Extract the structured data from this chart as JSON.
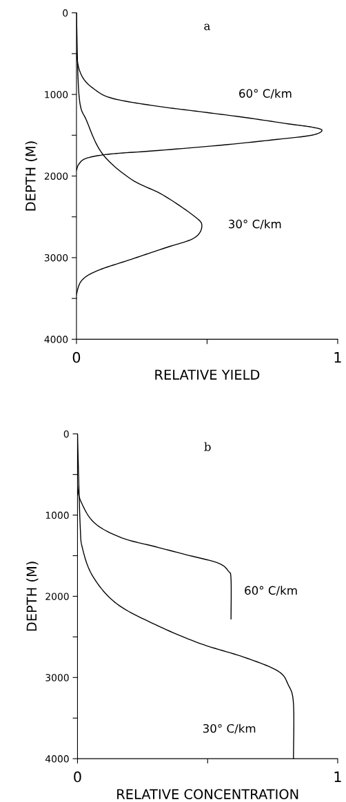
{
  "chart_data": [
    {
      "type": "line",
      "title": "a",
      "xlabel": "RELATIVE YIELD",
      "ylabel": "DEPTH (M)",
      "xlim": [
        0,
        1
      ],
      "xticks": [
        0,
        {
          "value": 0.5,
          "label": null
        },
        1
      ],
      "ylim": [
        4000,
        0
      ],
      "yticks": [
        0,
        {
          "value": 500,
          "label": null
        },
        1000,
        {
          "value": 1500,
          "label": null
        },
        2000,
        {
          "value": 2500,
          "label": null
        },
        3000,
        {
          "value": 3500,
          "label": null
        },
        4000
      ],
      "grid": false,
      "marker": "none",
      "line_style": "solid",
      "series": [
        {
          "color": "#000000",
          "x": [
            0,
            0,
            0.02,
            0.07,
            0.14,
            0.3,
            0.47,
            0.64,
            0.81,
            0.9,
            0.94,
            0.9,
            0.77,
            0.56,
            0.3,
            0.13,
            0.04,
            0.01,
            0
          ],
          "values": [
            0,
            490,
            770,
            940,
            1050,
            1140,
            1210,
            1280,
            1360,
            1400,
            1440,
            1500,
            1550,
            1620,
            1690,
            1730,
            1780,
            1850,
            1930
          ]
        },
        {
          "color": "#000000",
          "x": [
            0,
            0.01,
            0.04,
            0.1,
            0.21,
            0.33,
            0.45,
            0.48,
            0.45,
            0.34,
            0.21,
            0.08,
            0.02,
            0,
            0
          ],
          "values": [
            0,
            1020,
            1330,
            1730,
            2040,
            2230,
            2490,
            2610,
            2760,
            2880,
            3020,
            3160,
            3280,
            3450,
            3500
          ]
        }
      ],
      "annotations": [
        "60° C/km",
        "30° C/km"
      ]
    },
    {
      "type": "line",
      "title": "b",
      "xlabel": "RELATIVE CONCENTRATION",
      "ylabel": "DEPTH (M)",
      "xlim": [
        0,
        1
      ],
      "xticks": [
        0,
        {
          "value": 0.5,
          "label": null
        },
        1
      ],
      "ylim": [
        4000,
        0
      ],
      "yticks": [
        0,
        {
          "value": 500,
          "label": null
        },
        1000,
        {
          "value": 1500,
          "label": null
        },
        2000,
        {
          "value": 2500,
          "label": null
        },
        3000,
        {
          "value": 3500,
          "label": null
        },
        4000
      ],
      "grid": false,
      "marker": "none",
      "line_style": "solid",
      "series": [
        {
          "color": "#000000",
          "x": [
            0,
            0,
            0.02,
            0.07,
            0.17,
            0.3,
            0.42,
            0.54,
            0.58,
            0.59,
            0.59
          ],
          "values": [
            0,
            630,
            880,
            1110,
            1280,
            1390,
            1490,
            1590,
            1690,
            1790,
            2280
          ]
        },
        {
          "color": "#000000",
          "x": [
            0,
            0.01,
            0.02,
            0.06,
            0.15,
            0.3,
            0.47,
            0.64,
            0.77,
            0.81,
            0.83,
            0.83
          ],
          "values": [
            0,
            1110,
            1420,
            1760,
            2090,
            2350,
            2580,
            2750,
            2920,
            3090,
            3320,
            4000
          ]
        }
      ],
      "annotations": [
        "60° C/km",
        "30° C/km"
      ]
    }
  ]
}
